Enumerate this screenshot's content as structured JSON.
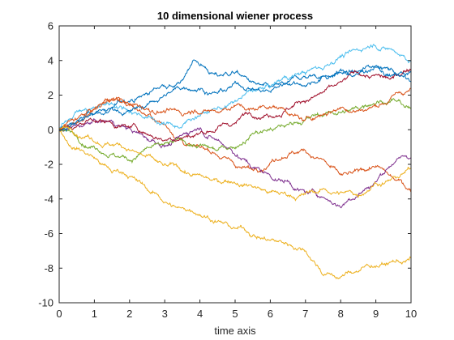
{
  "chart_data": {
    "type": "line",
    "title": "10 dimensional wiener process",
    "xlabel": "time axis",
    "ylabel": "",
    "xlim": [
      0,
      10
    ],
    "ylim": [
      -10,
      6
    ],
    "xticks": [
      "0",
      "1",
      "2",
      "3",
      "4",
      "5",
      "6",
      "7",
      "8",
      "9",
      "10"
    ],
    "yticks": [
      "-10",
      "-8",
      "-6",
      "-4",
      "-2",
      "0",
      "2",
      "4",
      "6"
    ],
    "grid": false,
    "legend": "none",
    "series": [
      {
        "color": "#0072BD",
        "t": [
          0,
          0.5,
          1,
          1.5,
          2,
          2.5,
          3,
          3.5,
          3.8,
          4,
          4.5,
          5,
          5.5,
          6,
          6.5,
          7,
          7.5,
          8,
          8.5,
          9,
          9.5,
          10
        ],
        "y": [
          0,
          0.4,
          0.9,
          1.3,
          1.6,
          2.1,
          2.5,
          2.9,
          4.0,
          3.7,
          3.1,
          3.3,
          2.8,
          2.5,
          2.8,
          3.0,
          3.1,
          3.3,
          3.4,
          3.6,
          3.2,
          3.4
        ]
      },
      {
        "color": "#D95319",
        "t": [
          0,
          0.5,
          1,
          1.5,
          2,
          2.5,
          3,
          3.5,
          4,
          4.5,
          5,
          5.5,
          6,
          6.5,
          7,
          7.5,
          8,
          8.5,
          9,
          9.5,
          10
        ],
        "y": [
          0,
          0.4,
          1.2,
          1.7,
          1.5,
          0.8,
          0.3,
          -0.6,
          -1.0,
          -1.5,
          -2.1,
          -2.3,
          -1.9,
          -1.5,
          -1.2,
          -1.7,
          -2.6,
          -2.4,
          -2.1,
          -2.8,
          -3.6
        ]
      },
      {
        "color": "#EDB120",
        "t": [
          0,
          0.3,
          0.6,
          1,
          1.5,
          2,
          2.5,
          3,
          3.5,
          4,
          4.5,
          5,
          5.5,
          6,
          6.5,
          7,
          7.5,
          8,
          8.5,
          9,
          9.5,
          10
        ],
        "y": [
          0,
          -0.9,
          -1.2,
          -1.6,
          -2.5,
          -2.7,
          -3.5,
          -4.2,
          -4.5,
          -4.9,
          -5.3,
          -5.7,
          -6.1,
          -6.4,
          -6.7,
          -7.0,
          -8.4,
          -8.5,
          -8.2,
          -7.9,
          -7.6,
          -7.4
        ]
      },
      {
        "color": "#7E2F8E",
        "t": [
          0,
          0.5,
          1,
          1.5,
          2,
          2.5,
          3,
          3.5,
          4,
          4.5,
          5,
          5.5,
          6,
          6.5,
          7,
          7.5,
          8,
          8.5,
          9,
          9.5,
          10
        ],
        "y": [
          0,
          0.3,
          0.6,
          0.5,
          0.1,
          -0.6,
          -0.9,
          -0.3,
          0.1,
          -0.6,
          -1.5,
          -2.2,
          -2.7,
          -3.0,
          -3.6,
          -3.9,
          -4.5,
          -3.8,
          -3.0,
          -2.0,
          -1.6
        ]
      },
      {
        "color": "#77AC30",
        "t": [
          0,
          0.5,
          1,
          1.5,
          2,
          2.5,
          3,
          3.5,
          4,
          4.5,
          5,
          5.5,
          6,
          6.5,
          7,
          7.5,
          8,
          8.5,
          9,
          9.5,
          10
        ],
        "y": [
          0,
          -0.4,
          -1.0,
          -1.4,
          -1.8,
          -1.0,
          -0.8,
          -0.6,
          -0.9,
          -1.2,
          -1.1,
          -0.2,
          0.1,
          0.3,
          0.6,
          0.8,
          1.0,
          1.2,
          1.5,
          1.8,
          1.3
        ]
      },
      {
        "color": "#4DBEEE",
        "t": [
          0,
          0.5,
          1,
          1.5,
          2,
          2.5,
          3,
          3.5,
          4,
          4.5,
          5,
          5.5,
          6,
          6.5,
          7,
          7.5,
          8,
          8.5,
          9,
          9.5,
          10
        ],
        "y": [
          0,
          1.1,
          1.3,
          1.5,
          1.0,
          0.7,
          0.3,
          0.2,
          0.8,
          1.3,
          1.7,
          2.2,
          2.5,
          2.9,
          3.2,
          3.5,
          4.2,
          4.6,
          4.8,
          4.6,
          3.9
        ]
      },
      {
        "color": "#A2142F",
        "t": [
          0,
          0.5,
          1,
          1.5,
          2,
          2.5,
          3,
          3.5,
          4,
          4.5,
          5,
          5.5,
          6,
          6.5,
          7,
          7.5,
          8,
          8.5,
          9,
          9.5,
          10
        ],
        "y": [
          0,
          0.2,
          0.5,
          0.4,
          0.1,
          -0.3,
          -0.6,
          -0.5,
          -0.2,
          0.1,
          0.4,
          0.7,
          0.8,
          1.2,
          1.6,
          2.2,
          2.8,
          3.3,
          3.2,
          3.0,
          3.5
        ]
      },
      {
        "color": "#0072BD",
        "t": [
          0,
          0.5,
          1,
          1.5,
          2,
          2.5,
          3,
          3.5,
          4,
          4.5,
          5,
          5.5,
          6,
          6.5,
          7,
          7.5,
          8,
          8.5,
          9,
          9.5,
          10
        ],
        "y": [
          0,
          0.5,
          0.9,
          1.3,
          1.1,
          1.5,
          2.0,
          2.4,
          2.3,
          2.1,
          2.8,
          2.4,
          2.2,
          2.6,
          2.5,
          3.1,
          3.5,
          3.2,
          3.7,
          3.4,
          2.8
        ]
      },
      {
        "color": "#D95319",
        "t": [
          0,
          0.5,
          1,
          1.5,
          2,
          2.5,
          3,
          3.5,
          4,
          4.5,
          5,
          5.5,
          6,
          6.5,
          7,
          7.5,
          8,
          8.5,
          9,
          9.5,
          10
        ],
        "y": [
          0,
          0.6,
          1.2,
          1.8,
          1.4,
          1.2,
          1.0,
          0.8,
          0.9,
          1.0,
          1.4,
          1.2,
          1.3,
          0.9,
          0.6,
          0.9,
          1.3,
          1.1,
          1.4,
          2.0,
          2.4
        ]
      },
      {
        "color": "#EDB120",
        "t": [
          0,
          0.5,
          1,
          1.5,
          2,
          2.5,
          3,
          3.5,
          4,
          4.5,
          5,
          5.5,
          6,
          6.5,
          7,
          7.5,
          8,
          8.5,
          9,
          9.5,
          10
        ],
        "y": [
          0,
          -0.3,
          -0.7,
          -0.9,
          -1.2,
          -1.5,
          -2.0,
          -2.4,
          -2.6,
          -3.0,
          -3.1,
          -3.3,
          -3.6,
          -3.8,
          -3.7,
          -3.4,
          -3.6,
          -3.9,
          -3.1,
          -2.7,
          -2.2
        ]
      }
    ]
  }
}
